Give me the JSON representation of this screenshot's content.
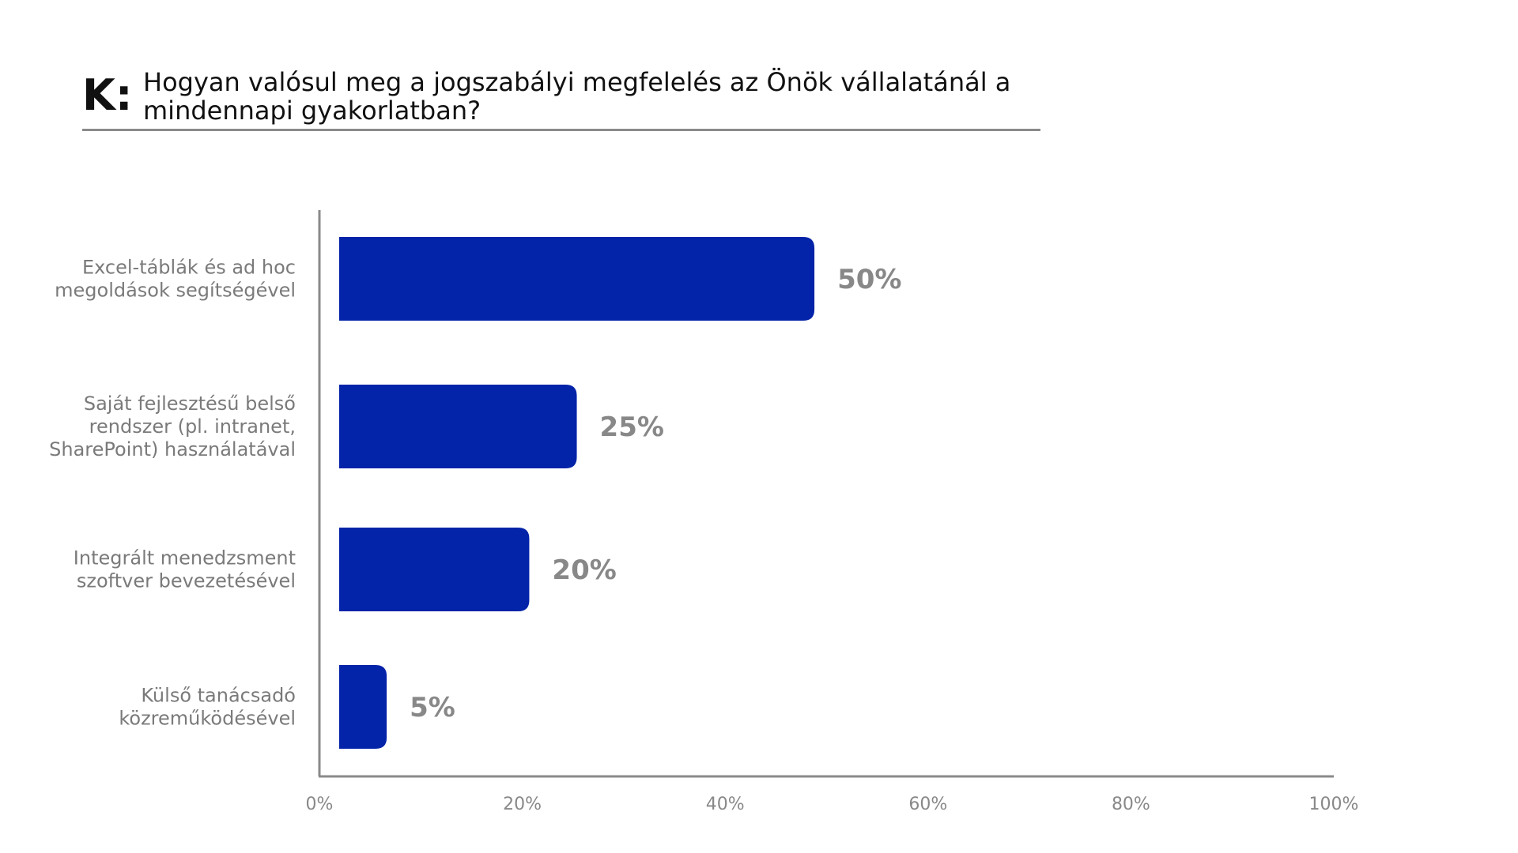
{
  "question": {
    "marker": "K:",
    "text": "Hogyan valósul meg a jogszabályi megfelelés az Önök vállalatánál a mindennapi gyakorlatban?"
  },
  "chart_data": {
    "type": "bar",
    "orientation": "horizontal",
    "categories": [
      [
        "Excel-táblák és ad hoc",
        "megoldások segítségével"
      ],
      [
        "Saját fejlesztésű belső",
        "rendszer (pl. intranet,",
        "SharePoint) használatával"
      ],
      [
        "Integrált menedzsment",
        "szoftver bevezetésével"
      ],
      [
        "Külső tanácsadó",
        "közreműködésével"
      ]
    ],
    "values": [
      50,
      25,
      20,
      5
    ],
    "value_labels": [
      "50%",
      "25%",
      "20%",
      "5%"
    ],
    "xlim": [
      0,
      100
    ],
    "xticks": [
      0,
      20,
      40,
      60,
      80,
      100
    ],
    "xtick_labels": [
      "0%",
      "20%",
      "40%",
      "60%",
      "80%",
      "100%"
    ],
    "grid": false,
    "colors": {
      "bar": "#0323a8",
      "axis": "#8a8a8a",
      "value_text": "#888888",
      "category_text": "#7a7a7a"
    }
  }
}
